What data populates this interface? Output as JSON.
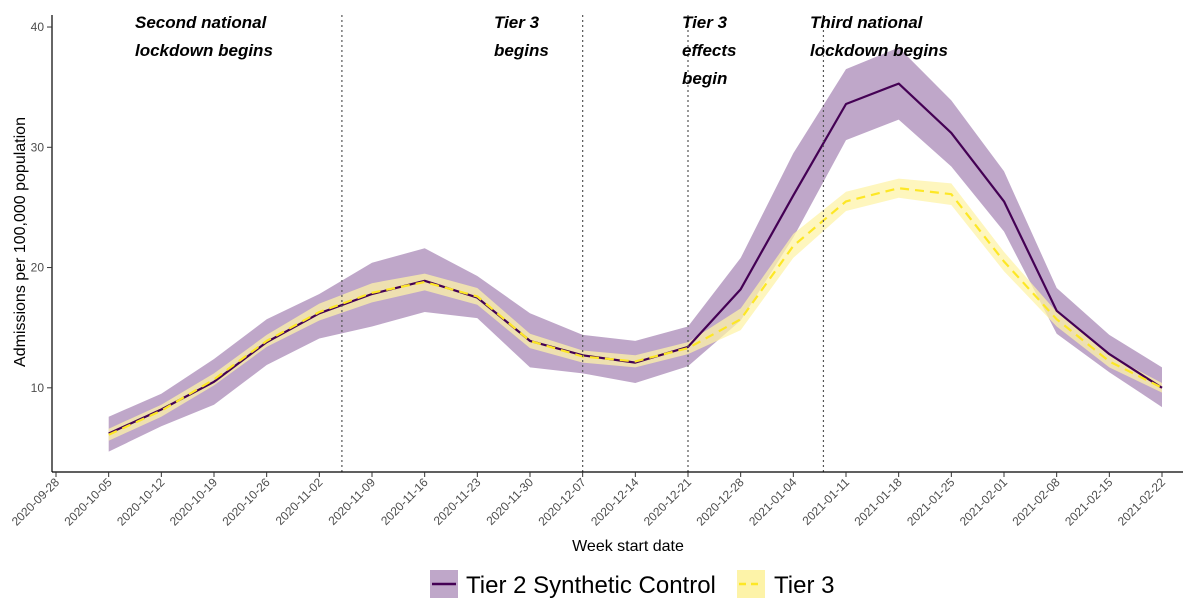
{
  "chart_data": {
    "type": "line",
    "xlabel": "Week start date",
    "ylabel": "Admissions per 100,000 population",
    "ylim": [
      3,
      41
    ],
    "yticks": [
      10,
      20,
      30,
      40
    ],
    "xticks": [
      "2020-09-28",
      "2020-10-05",
      "2020-10-12",
      "2020-10-19",
      "2020-10-26",
      "2020-11-02",
      "2020-11-09",
      "2020-11-16",
      "2020-11-23",
      "2020-11-30",
      "2020-12-07",
      "2020-12-14",
      "2020-12-21",
      "2020-12-28",
      "2021-01-04",
      "2021-01-11",
      "2021-01-18",
      "2021-01-25",
      "2021-02-01",
      "2021-02-08",
      "2021-02-15",
      "2021-02-22"
    ],
    "x": [
      "2020-10-05",
      "2020-10-12",
      "2020-10-19",
      "2020-10-26",
      "2020-11-02",
      "2020-11-09",
      "2020-11-16",
      "2020-11-23",
      "2020-11-30",
      "2020-12-07",
      "2020-12-14",
      "2020-12-21",
      "2020-12-28",
      "2021-01-04",
      "2021-01-11",
      "2021-01-18",
      "2021-01-25",
      "2021-02-01",
      "2021-02-08",
      "2021-02-15",
      "2021-02-22"
    ],
    "series": [
      {
        "name": "Tier 2 Synthetic Control",
        "color": "#440154",
        "band_color": "#bfa7c9",
        "line_style": "solid",
        "values": [
          6.2,
          8.2,
          10.5,
          13.8,
          16.2,
          17.8,
          18.9,
          17.5,
          13.9,
          12.7,
          12.1,
          13.4,
          18.2,
          26.0,
          33.6,
          35.3,
          31.2,
          25.5,
          16.4,
          12.8,
          10.0
        ],
        "lower": [
          4.7,
          6.8,
          8.6,
          11.9,
          14.1,
          15.1,
          16.3,
          15.8,
          11.7,
          11.2,
          10.4,
          11.8,
          15.6,
          22.5,
          30.6,
          32.3,
          28.4,
          23.0,
          14.5,
          11.3,
          8.4
        ],
        "upper": [
          7.6,
          9.5,
          12.4,
          15.7,
          17.8,
          20.4,
          21.6,
          19.3,
          16.2,
          14.4,
          13.9,
          15.1,
          20.8,
          29.5,
          36.5,
          38.3,
          33.9,
          28.0,
          18.3,
          14.4,
          11.7
        ]
      },
      {
        "name": "Tier 3",
        "color": "#fde725",
        "band_color": "#fdf3a8",
        "line_style": "dashed",
        "values": [
          6.1,
          8.1,
          10.7,
          13.9,
          16.3,
          17.9,
          18.8,
          17.6,
          13.9,
          12.6,
          12.2,
          13.3,
          15.7,
          21.8,
          25.5,
          26.6,
          26.1,
          20.5,
          15.7,
          12.2,
          10.0
        ],
        "lower": [
          5.6,
          7.6,
          10.2,
          13.4,
          15.6,
          17.1,
          18.1,
          16.9,
          13.3,
          12.1,
          11.7,
          12.8,
          14.8,
          20.8,
          24.7,
          25.8,
          25.2,
          19.7,
          15.1,
          11.7,
          9.6
        ],
        "upper": [
          6.6,
          8.6,
          11.2,
          14.4,
          17.0,
          18.7,
          19.5,
          18.3,
          14.5,
          13.1,
          12.7,
          13.8,
          16.6,
          22.8,
          26.3,
          27.4,
          27.0,
          21.3,
          16.3,
          12.7,
          10.4
        ]
      }
    ],
    "vlines": [
      {
        "date": "2020-11-05",
        "label": [
          "Second national",
          "lockdown begins"
        ]
      },
      {
        "date": "2020-12-07",
        "label": [
          "Tier 3",
          "begins"
        ]
      },
      {
        "date": "2020-12-21",
        "label": [
          "Tier 3",
          "effects",
          "begin"
        ]
      },
      {
        "date": "2021-01-08",
        "label": [
          "Third national",
          "lockdown begins"
        ]
      }
    ],
    "grid": false,
    "legend_position": "bottom"
  }
}
